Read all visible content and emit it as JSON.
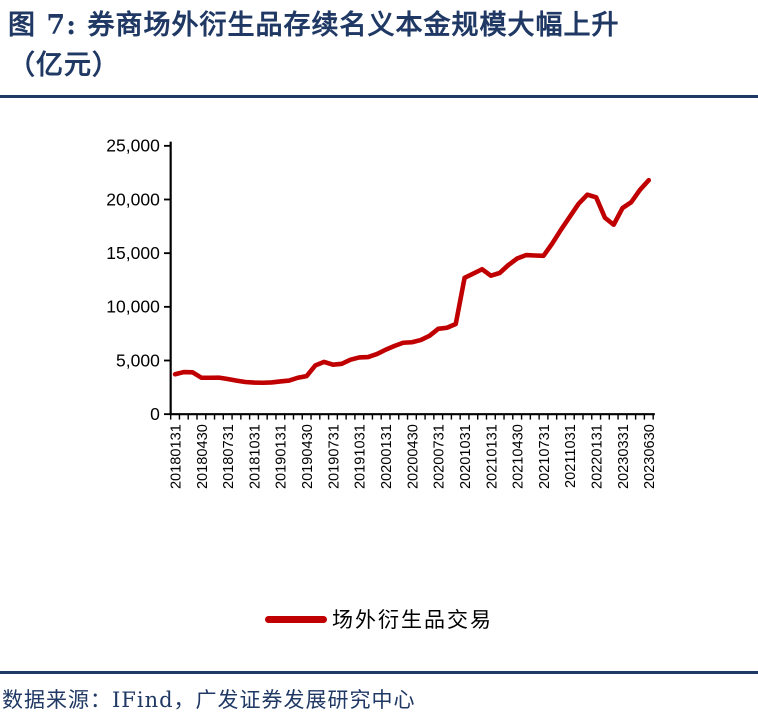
{
  "figure": {
    "title_line1": "图 7: 券商场外衍生品存续名义本金规模大幅上升",
    "title_line2": "（亿元）"
  },
  "chart_data": {
    "type": "line",
    "title": "券商场外衍生品存续名义本金规模（亿元）",
    "xlabel": "",
    "ylabel": "",
    "ylim": [
      0,
      25000
    ],
    "y_ticks": [
      0,
      5000,
      10000,
      15000,
      20000,
      25000
    ],
    "y_tick_labels": [
      "0",
      "5,000",
      "10,000",
      "15,000",
      "20,000",
      "25,000"
    ],
    "grid": false,
    "legend_position": "bottom",
    "x_label_step": 3,
    "x_tick_labels": [
      "20180131",
      "20180430",
      "20180731",
      "20181031",
      "20190131",
      "20190430",
      "20190731",
      "20191031",
      "20200131",
      "20200430",
      "20200731",
      "20201031",
      "20210131",
      "20210430",
      "20210731",
      "20211031",
      "20220131",
      "20230331",
      "20230630"
    ],
    "series": [
      {
        "name": "场外衍生品交易",
        "color": "#C00000",
        "values": [
          3720,
          3920,
          3900,
          3400,
          3390,
          3400,
          3280,
          3130,
          3000,
          2940,
          2930,
          2960,
          3050,
          3130,
          3390,
          3550,
          4550,
          4870,
          4610,
          4690,
          5080,
          5290,
          5320,
          5600,
          6000,
          6350,
          6650,
          6700,
          6900,
          7300,
          7950,
          8050,
          8400,
          12700,
          13100,
          13500,
          12900,
          13150,
          13900,
          14500,
          14820,
          14780,
          14750,
          15900,
          17200,
          18400,
          19600,
          20450,
          20200,
          18300,
          17650,
          19200,
          19750,
          20900,
          21800
        ]
      }
    ]
  },
  "legend": {
    "label": "场外衍生品交易"
  },
  "footer": {
    "source_text": "数据来源：IFind，广发证券发展研究中心"
  },
  "colors": {
    "line_red": "#C00000",
    "title_navy": "#1F3864",
    "axis_black": "#000000"
  }
}
